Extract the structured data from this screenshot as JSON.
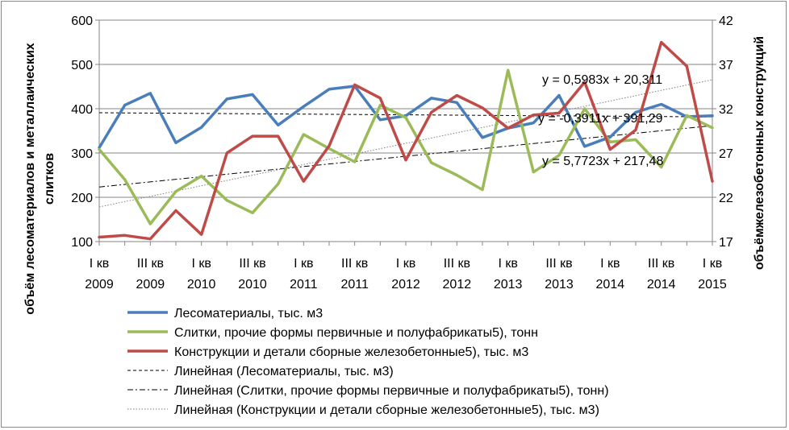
{
  "chart_data": {
    "type": "line",
    "categories": [
      [
        "I кв",
        "2009"
      ],
      [
        "",
        ""
      ],
      [
        "III кв",
        "2009"
      ],
      [
        "",
        ""
      ],
      [
        "I кв",
        "2010"
      ],
      [
        "",
        ""
      ],
      [
        "III кв",
        "2010"
      ],
      [
        "",
        ""
      ],
      [
        "I кв",
        "2011"
      ],
      [
        "",
        ""
      ],
      [
        "III  кв",
        "2011"
      ],
      [
        "",
        ""
      ],
      [
        "I  кв",
        "2012"
      ],
      [
        "",
        ""
      ],
      [
        "III  кв",
        "2012"
      ],
      [
        "",
        ""
      ],
      [
        "I кв",
        "2013"
      ],
      [
        "",
        ""
      ],
      [
        "III кв",
        "2013"
      ],
      [
        "",
        ""
      ],
      [
        "I кв",
        "2014"
      ],
      [
        "",
        ""
      ],
      [
        "III кв",
        "2014"
      ],
      [
        "",
        ""
      ],
      [
        "I кв",
        "2015"
      ]
    ],
    "y_left": {
      "label": "объём лесоматериалов и металлаических слитков",
      "label_lines": [
        "объём лесоматериалов и металлаических",
        "слитков"
      ],
      "min": 100,
      "max": 600,
      "ticks": [
        100,
        200,
        300,
        400,
        500,
        600
      ]
    },
    "y_right": {
      "label": "объёмжелезобетонных конструкций",
      "min": 17,
      "max": 42,
      "ticks": [
        17,
        22,
        27,
        32,
        37,
        42
      ]
    },
    "grid": true,
    "legend_position": "bottom",
    "series": [
      {
        "name": "Лесоматериалы, тыс. м3",
        "axis": "left",
        "color": "#4a7ebb",
        "values": [
          312,
          408,
          435,
          323,
          358,
          422,
          432,
          363,
          405,
          444,
          451,
          375,
          384,
          424,
          414,
          335,
          356,
          368,
          430,
          315,
          336,
          392,
          410,
          382,
          384
        ]
      },
      {
        "name": "Слитки, прочие формы первичные и полуфабрикаты5), тонн",
        "axis": "left",
        "color": "#9bbb59",
        "values": [
          308,
          240,
          140,
          213,
          248,
          193,
          165,
          230,
          342,
          310,
          280,
          408,
          380,
          278,
          250,
          217,
          487,
          257,
          295,
          400,
          325,
          330,
          268,
          385,
          357
        ]
      },
      {
        "name": "Конструкции и детали сборные железобетонные5), тыс. м3",
        "axis": "right",
        "color": "#be4b48",
        "values": [
          17.5,
          17.7,
          17.3,
          20.5,
          17.8,
          27.0,
          28.9,
          28.9,
          23.8,
          27.8,
          34.7,
          33.2,
          26.2,
          31.6,
          33.5,
          32.1,
          29.8,
          31.3,
          31.5,
          35.0,
          27.4,
          29.6,
          39.5,
          36.8,
          23.8
        ]
      }
    ],
    "trendlines": [
      {
        "name": "Линейная (Лесоматериалы, тыс. м3)",
        "of": "Лесоматериалы, тыс. м3",
        "axis": "left",
        "slope": -0.3911,
        "intercept": 391.29,
        "equation": "y = -0,3911x + 391,29",
        "style": "dashed"
      },
      {
        "name": "Линейная (Слитки, прочие формы первичные и полуфабрикаты5), тонн)",
        "of": "Слитки, прочие формы первичные и полуфабрикаты5), тонн",
        "axis": "left",
        "slope": 5.7723,
        "intercept": 217.48,
        "equation": "y = 5,7723x + 217,48",
        "style": "dashdot"
      },
      {
        "name": "Линейная (Конструкции и детали сборные железобетонные5), тыс. м3)",
        "of": "Конструкции и детали сборные железобетонные5), тыс. м3",
        "axis": "right",
        "slope": 0.5983,
        "intercept": 20.311,
        "equation": "y = 0,5983x + 20,311",
        "style": "dotted"
      }
    ]
  }
}
